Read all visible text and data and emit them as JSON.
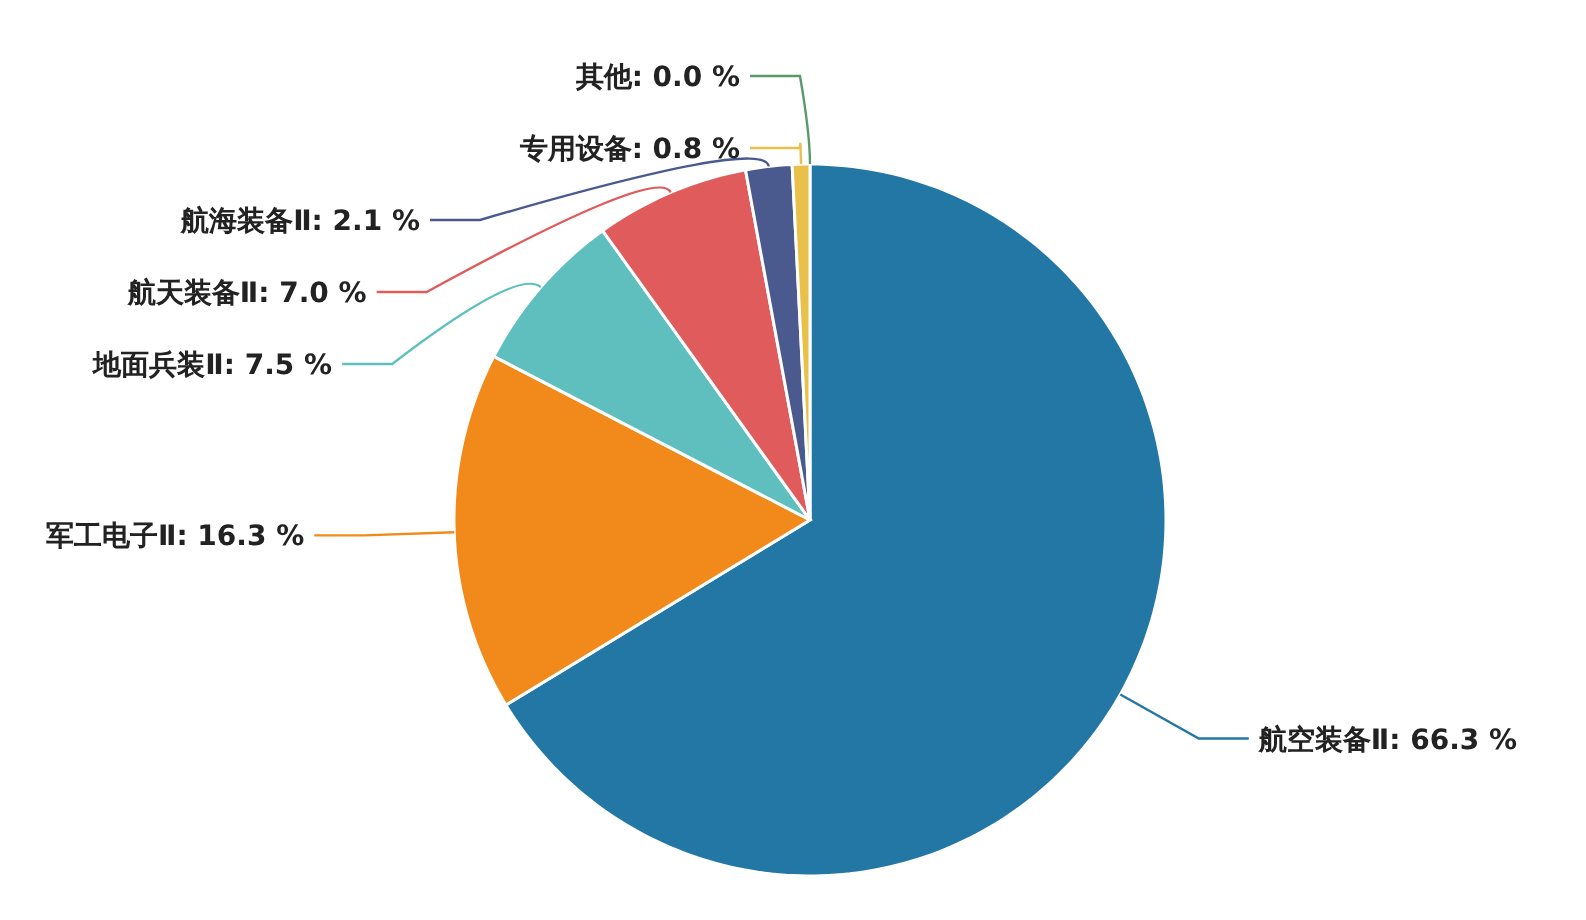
{
  "chart_data": {
    "type": "pie",
    "categories": [
      "航空装备Ⅱ",
      "军工电子Ⅱ",
      "地面兵装Ⅱ",
      "航天装备Ⅱ",
      "航海装备Ⅱ",
      "专用设备",
      "其他"
    ],
    "values": [
      66.3,
      16.3,
      7.5,
      7.0,
      2.1,
      0.8,
      0.0
    ],
    "value_labels": [
      ": 66.3 %",
      ": 16.3 %",
      ": 7.5 %",
      ": 7.0 %",
      ": 2.1 %",
      ": 0.8 %",
      ": 0.0 %"
    ],
    "colors": [
      "#2377a4",
      "#f28a1b",
      "#5fbfbf",
      "#e05c5c",
      "#4a5a8f",
      "#e8c04a",
      "#5a9a6a"
    ]
  }
}
